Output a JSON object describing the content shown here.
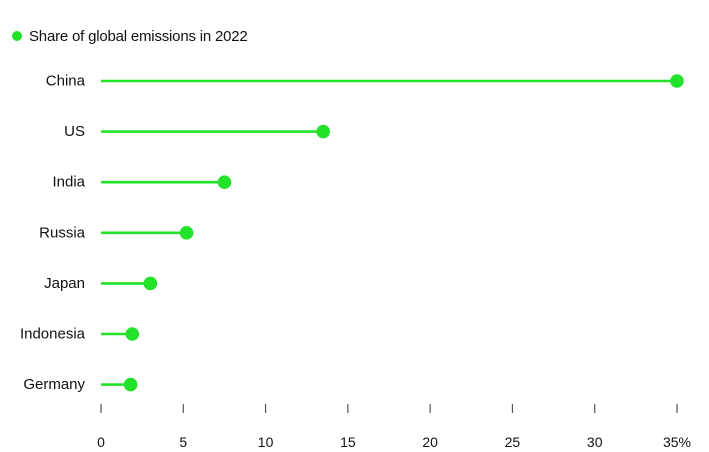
{
  "chart_data": {
    "type": "lollipop",
    "title": "",
    "xlabel": "",
    "ylabel": "",
    "series": [
      {
        "name": "Share of global emissions in 2022",
        "color": "#22e32a"
      }
    ],
    "categories": [
      "China",
      "US",
      "India",
      "Russia",
      "Japan",
      "Indonesia",
      "Germany"
    ],
    "values": [
      35,
      13.5,
      7.5,
      5.2,
      3.0,
      1.9,
      1.8
    ],
    "x_ticks": [
      "0",
      "5",
      "10",
      "15",
      "20",
      "25",
      "30",
      "35%"
    ],
    "xlim": [
      0,
      35
    ],
    "grid": false,
    "legend_position": "top-left"
  }
}
